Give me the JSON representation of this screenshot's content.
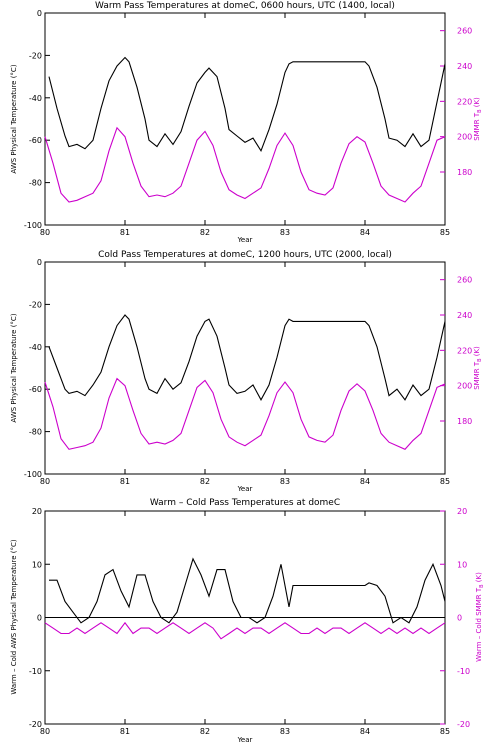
{
  "colors": {
    "black_series": "#000000",
    "magenta_series": "#cc00cc",
    "background": "#ffffff"
  },
  "chart_data": [
    {
      "type": "line",
      "title": "Warm Pass Temperatures at domeC, 0600 hours, UTC (1400, local)",
      "xlabel": "Year",
      "ylabel": "AWS Physical Temperature (°C)",
      "y2label": "SMMR T",
      "y2label_sub": "B",
      "y2label_unit": " (K)",
      "xlim": [
        80,
        85
      ],
      "ylim": [
        -100,
        0
      ],
      "y2lim": [
        150,
        270
      ],
      "x_ticks": [
        "80",
        "81",
        "82",
        "83",
        "84",
        "85"
      ],
      "y_ticks": [
        "0",
        "-20",
        "-40",
        "-60",
        "-80",
        "-100"
      ],
      "y2_ticks": [
        "260",
        "240",
        "220",
        "200",
        "180"
      ],
      "series": [
        {
          "axis": "left",
          "style": "line",
          "x": [
            80.05,
            80.15,
            80.25,
            80.3,
            80.4,
            80.5,
            80.6,
            80.7,
            80.8,
            80.9,
            81.0,
            81.05,
            81.15,
            81.25,
            81.3,
            81.4,
            81.5,
            81.6,
            81.7,
            81.8,
            81.9,
            82.0,
            82.05,
            82.15,
            82.25,
            82.3,
            82.4,
            82.5,
            82.6,
            82.7,
            82.8,
            82.9,
            83.0,
            83.05,
            83.1,
            84.0,
            84.05,
            84.15,
            84.25,
            84.3,
            84.4,
            84.5,
            84.6,
            84.7,
            84.8,
            84.9,
            85.0
          ],
          "y": [
            -30,
            -45,
            -58,
            -63,
            -62,
            -64,
            -60,
            -45,
            -32,
            -25,
            -21,
            -23,
            -35,
            -50,
            -60,
            -63,
            -57,
            -62,
            -56,
            -44,
            -33,
            -28,
            -26,
            -30,
            -45,
            -55,
            -58,
            -61,
            -59,
            -65,
            -55,
            -43,
            -28,
            -24,
            -23,
            -23,
            -25,
            -35,
            -50,
            -59,
            -60,
            -63,
            -57,
            -63,
            -60,
            -42,
            -24
          ]
        },
        {
          "axis": "right",
          "style": "line",
          "x": [
            80.0,
            80.1,
            80.2,
            80.3,
            80.4,
            80.5,
            80.6,
            80.7,
            80.8,
            80.9,
            81.0,
            81.1,
            81.2,
            81.3,
            81.4,
            81.5,
            81.6,
            81.7,
            81.8,
            81.9,
            82.0,
            82.1,
            82.2,
            82.3,
            82.4,
            82.5,
            82.6,
            82.7,
            82.8,
            82.9,
            83.0,
            83.1,
            83.2,
            83.3,
            83.4,
            83.5,
            83.6,
            83.7,
            83.8,
            83.9,
            84.0,
            84.1,
            84.2,
            84.3,
            84.4,
            84.5,
            84.6,
            84.7,
            84.8,
            84.9,
            85.0
          ],
          "y": [
            200,
            185,
            168,
            163,
            164,
            166,
            168,
            175,
            192,
            205,
            200,
            185,
            172,
            166,
            167,
            166,
            168,
            172,
            185,
            198,
            203,
            195,
            180,
            170,
            167,
            165,
            168,
            171,
            182,
            195,
            202,
            195,
            180,
            170,
            168,
            167,
            171,
            185,
            196,
            200,
            197,
            185,
            172,
            167,
            165,
            163,
            168,
            172,
            185,
            198,
            200
          ]
        }
      ]
    },
    {
      "type": "line",
      "title": "Cold Pass Temperatures at domeC, 1200 hours, UTC (2000, local)",
      "xlabel": "Year",
      "ylabel": "AWS Physical Temperature (°C)",
      "y2label": "SMMR T",
      "y2label_sub": "B",
      "y2label_unit": " (K)",
      "xlim": [
        80,
        85
      ],
      "ylim": [
        -100,
        0
      ],
      "y2lim": [
        150,
        270
      ],
      "x_ticks": [
        "80",
        "81",
        "82",
        "83",
        "84",
        "85"
      ],
      "y_ticks": [
        "0",
        "-20",
        "-40",
        "-60",
        "-80",
        "-100"
      ],
      "y2_ticks": [
        "260",
        "240",
        "220",
        "200",
        "180"
      ],
      "series": [
        {
          "axis": "left",
          "style": "line",
          "x": [
            80.05,
            80.15,
            80.25,
            80.3,
            80.4,
            80.5,
            80.6,
            80.7,
            80.8,
            80.9,
            81.0,
            81.05,
            81.15,
            81.25,
            81.3,
            81.4,
            81.5,
            81.6,
            81.7,
            81.8,
            81.9,
            82.0,
            82.05,
            82.15,
            82.25,
            82.3,
            82.4,
            82.5,
            82.6,
            82.7,
            82.8,
            82.9,
            83.0,
            83.05,
            83.1,
            84.0,
            84.05,
            84.15,
            84.25,
            84.3,
            84.4,
            84.5,
            84.6,
            84.7,
            84.8,
            84.9,
            85.0
          ],
          "y": [
            -40,
            -50,
            -60,
            -62,
            -61,
            -63,
            -58,
            -52,
            -40,
            -30,
            -25,
            -27,
            -40,
            -55,
            -60,
            -62,
            -55,
            -60,
            -57,
            -47,
            -35,
            -28,
            -27,
            -35,
            -50,
            -58,
            -62,
            -61,
            -58,
            -65,
            -58,
            -45,
            -30,
            -27,
            -28,
            -28,
            -30,
            -40,
            -55,
            -63,
            -60,
            -65,
            -58,
            -63,
            -60,
            -45,
            -28
          ]
        },
        {
          "axis": "right",
          "style": "line",
          "x": [
            80.0,
            80.1,
            80.2,
            80.3,
            80.4,
            80.5,
            80.6,
            80.7,
            80.8,
            80.9,
            81.0,
            81.1,
            81.2,
            81.3,
            81.4,
            81.5,
            81.6,
            81.7,
            81.8,
            81.9,
            82.0,
            82.1,
            82.2,
            82.3,
            82.4,
            82.5,
            82.6,
            82.7,
            82.8,
            82.9,
            83.0,
            83.1,
            83.2,
            83.3,
            83.4,
            83.5,
            83.6,
            83.7,
            83.8,
            83.9,
            84.0,
            84.1,
            84.2,
            84.3,
            84.4,
            84.5,
            84.6,
            84.7,
            84.8,
            84.9,
            85.0
          ],
          "y": [
            202,
            188,
            170,
            164,
            165,
            166,
            168,
            176,
            193,
            204,
            200,
            186,
            173,
            167,
            168,
            167,
            169,
            173,
            186,
            199,
            203,
            196,
            181,
            171,
            168,
            166,
            169,
            172,
            183,
            196,
            202,
            196,
            181,
            171,
            169,
            168,
            172,
            186,
            197,
            201,
            197,
            186,
            173,
            168,
            166,
            164,
            169,
            173,
            186,
            199,
            201
          ]
        }
      ]
    },
    {
      "type": "line",
      "title": "Warm – Cold Pass Temperatures at domeC",
      "xlabel": "Year",
      "ylabel": "Warm – Cold AWS Physical Temperature (°C)",
      "y2label": "Warm – Cold SMMR T",
      "y2label_sub": "B",
      "y2label_unit": " (K)",
      "xlim": [
        80,
        85
      ],
      "ylim": [
        -20,
        20
      ],
      "y2lim": [
        -20,
        20
      ],
      "x_ticks": [
        "80",
        "81",
        "82",
        "83",
        "84",
        "85"
      ],
      "y_ticks": [
        "20",
        "10",
        "0",
        "-10",
        "-20"
      ],
      "y2_ticks": [
        "20",
        "10",
        "0",
        "-10",
        "-20"
      ],
      "series": [
        {
          "axis": "left",
          "style": "line",
          "x": [
            80.05,
            80.15,
            80.25,
            80.35,
            80.45,
            80.55,
            80.65,
            80.75,
            80.85,
            80.95,
            81.05,
            81.15,
            81.25,
            81.35,
            81.45,
            81.55,
            81.65,
            81.75,
            81.85,
            81.95,
            82.05,
            82.15,
            82.25,
            82.35,
            82.45,
            82.55,
            82.65,
            82.75,
            82.85,
            82.95,
            83.05,
            83.1,
            84.0,
            84.05,
            84.15,
            84.25,
            84.35,
            84.45,
            84.55,
            84.65,
            84.75,
            84.85,
            84.95,
            85.0
          ],
          "y": [
            7,
            7,
            3,
            1,
            -1,
            0,
            3,
            8,
            9,
            5,
            2,
            8,
            8,
            3,
            0,
            -1,
            1,
            6,
            11,
            8,
            4,
            9,
            9,
            3,
            0,
            0,
            -1,
            0,
            4,
            10,
            2,
            6,
            6,
            6.5,
            6,
            4,
            -1,
            0,
            -1,
            2,
            7,
            10,
            6,
            3
          ]
        },
        {
          "axis": "right",
          "style": "line",
          "x": [
            80.0,
            80.1,
            80.2,
            80.3,
            80.4,
            80.5,
            80.6,
            80.7,
            80.8,
            80.9,
            81.0,
            81.1,
            81.2,
            81.3,
            81.4,
            81.5,
            81.6,
            81.7,
            81.8,
            81.9,
            82.0,
            82.1,
            82.2,
            82.3,
            82.4,
            82.5,
            82.6,
            82.7,
            82.8,
            82.9,
            83.0,
            83.1,
            83.2,
            83.3,
            83.4,
            83.5,
            83.6,
            83.7,
            83.8,
            83.9,
            84.0,
            84.1,
            84.2,
            84.3,
            84.4,
            84.5,
            84.6,
            84.7,
            84.8,
            84.9,
            85.0
          ],
          "y": [
            -1,
            -2,
            -3,
            -3,
            -2,
            -3,
            -2,
            -1,
            -2,
            -3,
            -1,
            -3,
            -2,
            -2,
            -3,
            -2,
            -1,
            -2,
            -3,
            -2,
            -1,
            -2,
            -4,
            -3,
            -2,
            -3,
            -2,
            -2,
            -3,
            -2,
            -1,
            -2,
            -3,
            -3,
            -2,
            -3,
            -2,
            -2,
            -3,
            -2,
            -1,
            -2,
            -3,
            -2,
            -3,
            -2,
            -3,
            -2,
            -3,
            -2,
            -1
          ]
        },
        {
          "axis": "left",
          "style": "zero-line",
          "x": [
            80,
            85
          ],
          "y": [
            0,
            0
          ]
        }
      ]
    }
  ]
}
